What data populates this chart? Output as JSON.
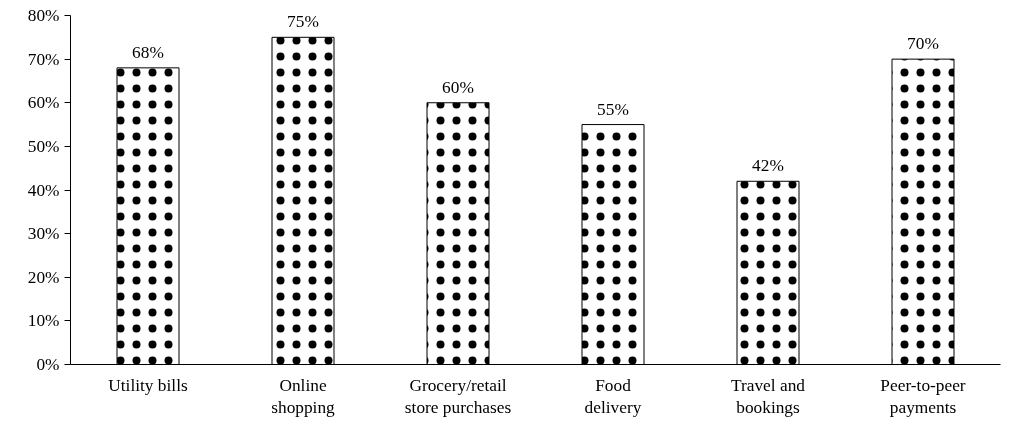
{
  "chart_data": {
    "type": "bar",
    "categories": [
      "Utility bills",
      "Online\nshopping",
      "Grocery/retail\nstore purchases",
      "Food\ndelivery",
      "Travel and\nbookings",
      "Peer-to-peer\npayments"
    ],
    "values": [
      68,
      75,
      60,
      55,
      42,
      70
    ],
    "value_labels": [
      "68%",
      "75%",
      "60%",
      "55%",
      "42%",
      "70%"
    ],
    "color": "#ffffff",
    "ylim": [
      0,
      80
    ],
    "yticks": [
      {
        "value": 0,
        "label": "0%"
      },
      {
        "value": 10,
        "label": "10%"
      },
      {
        "value": 20,
        "label": "20%"
      },
      {
        "value": 30,
        "label": "30%"
      },
      {
        "value": 40,
        "label": "40%"
      },
      {
        "value": 50,
        "label": "50%"
      },
      {
        "value": 60,
        "label": "60%"
      },
      {
        "value": 70,
        "label": "70%"
      },
      {
        "value": 80,
        "label": "80%"
      }
    ],
    "grid": false
  }
}
